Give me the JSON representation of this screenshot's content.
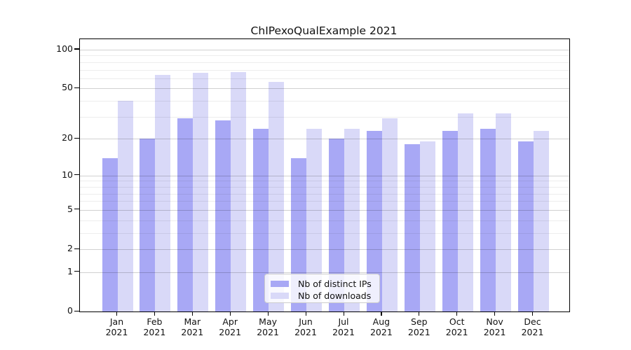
{
  "title": "ChIPexoQualExample 2021",
  "legend": {
    "items": [
      {
        "label": "Nb of distinct IPs",
        "color": "#a8a8f5"
      },
      {
        "label": "Nb of downloads",
        "color": "#d9d9f8"
      }
    ]
  },
  "chart_data": {
    "type": "bar",
    "title": "ChIPexoQualExample 2021",
    "categories": [
      "Jan 2021",
      "Feb 2021",
      "Mar 2021",
      "Apr 2021",
      "May 2021",
      "Jun 2021",
      "Jul 2021",
      "Aug 2021",
      "Sep 2021",
      "Oct 2021",
      "Nov 2021",
      "Dec 2021"
    ],
    "series": [
      {
        "name": "Nb of distinct IPs",
        "color": "#a8a8f5",
        "values": [
          14,
          20,
          29,
          28,
          24,
          14,
          20,
          23,
          18,
          23,
          24,
          19
        ]
      },
      {
        "name": "Nb of downloads",
        "color": "#d9d9f8",
        "values": [
          40,
          64,
          66,
          67,
          56,
          24,
          24,
          29,
          19,
          32,
          32,
          23
        ]
      }
    ],
    "y_scale": "log1p",
    "y_ticks": [
      0,
      1,
      2,
      5,
      10,
      20,
      50,
      100
    ],
    "y_minor_gridlines": [
      3,
      4,
      6,
      7,
      8,
      9,
      30,
      40,
      60,
      70,
      80,
      90
    ],
    "ylim": [
      0,
      120
    ],
    "grid": true,
    "legend_position": "lower center",
    "spine_color": "#000000",
    "background": "#ffffff"
  }
}
